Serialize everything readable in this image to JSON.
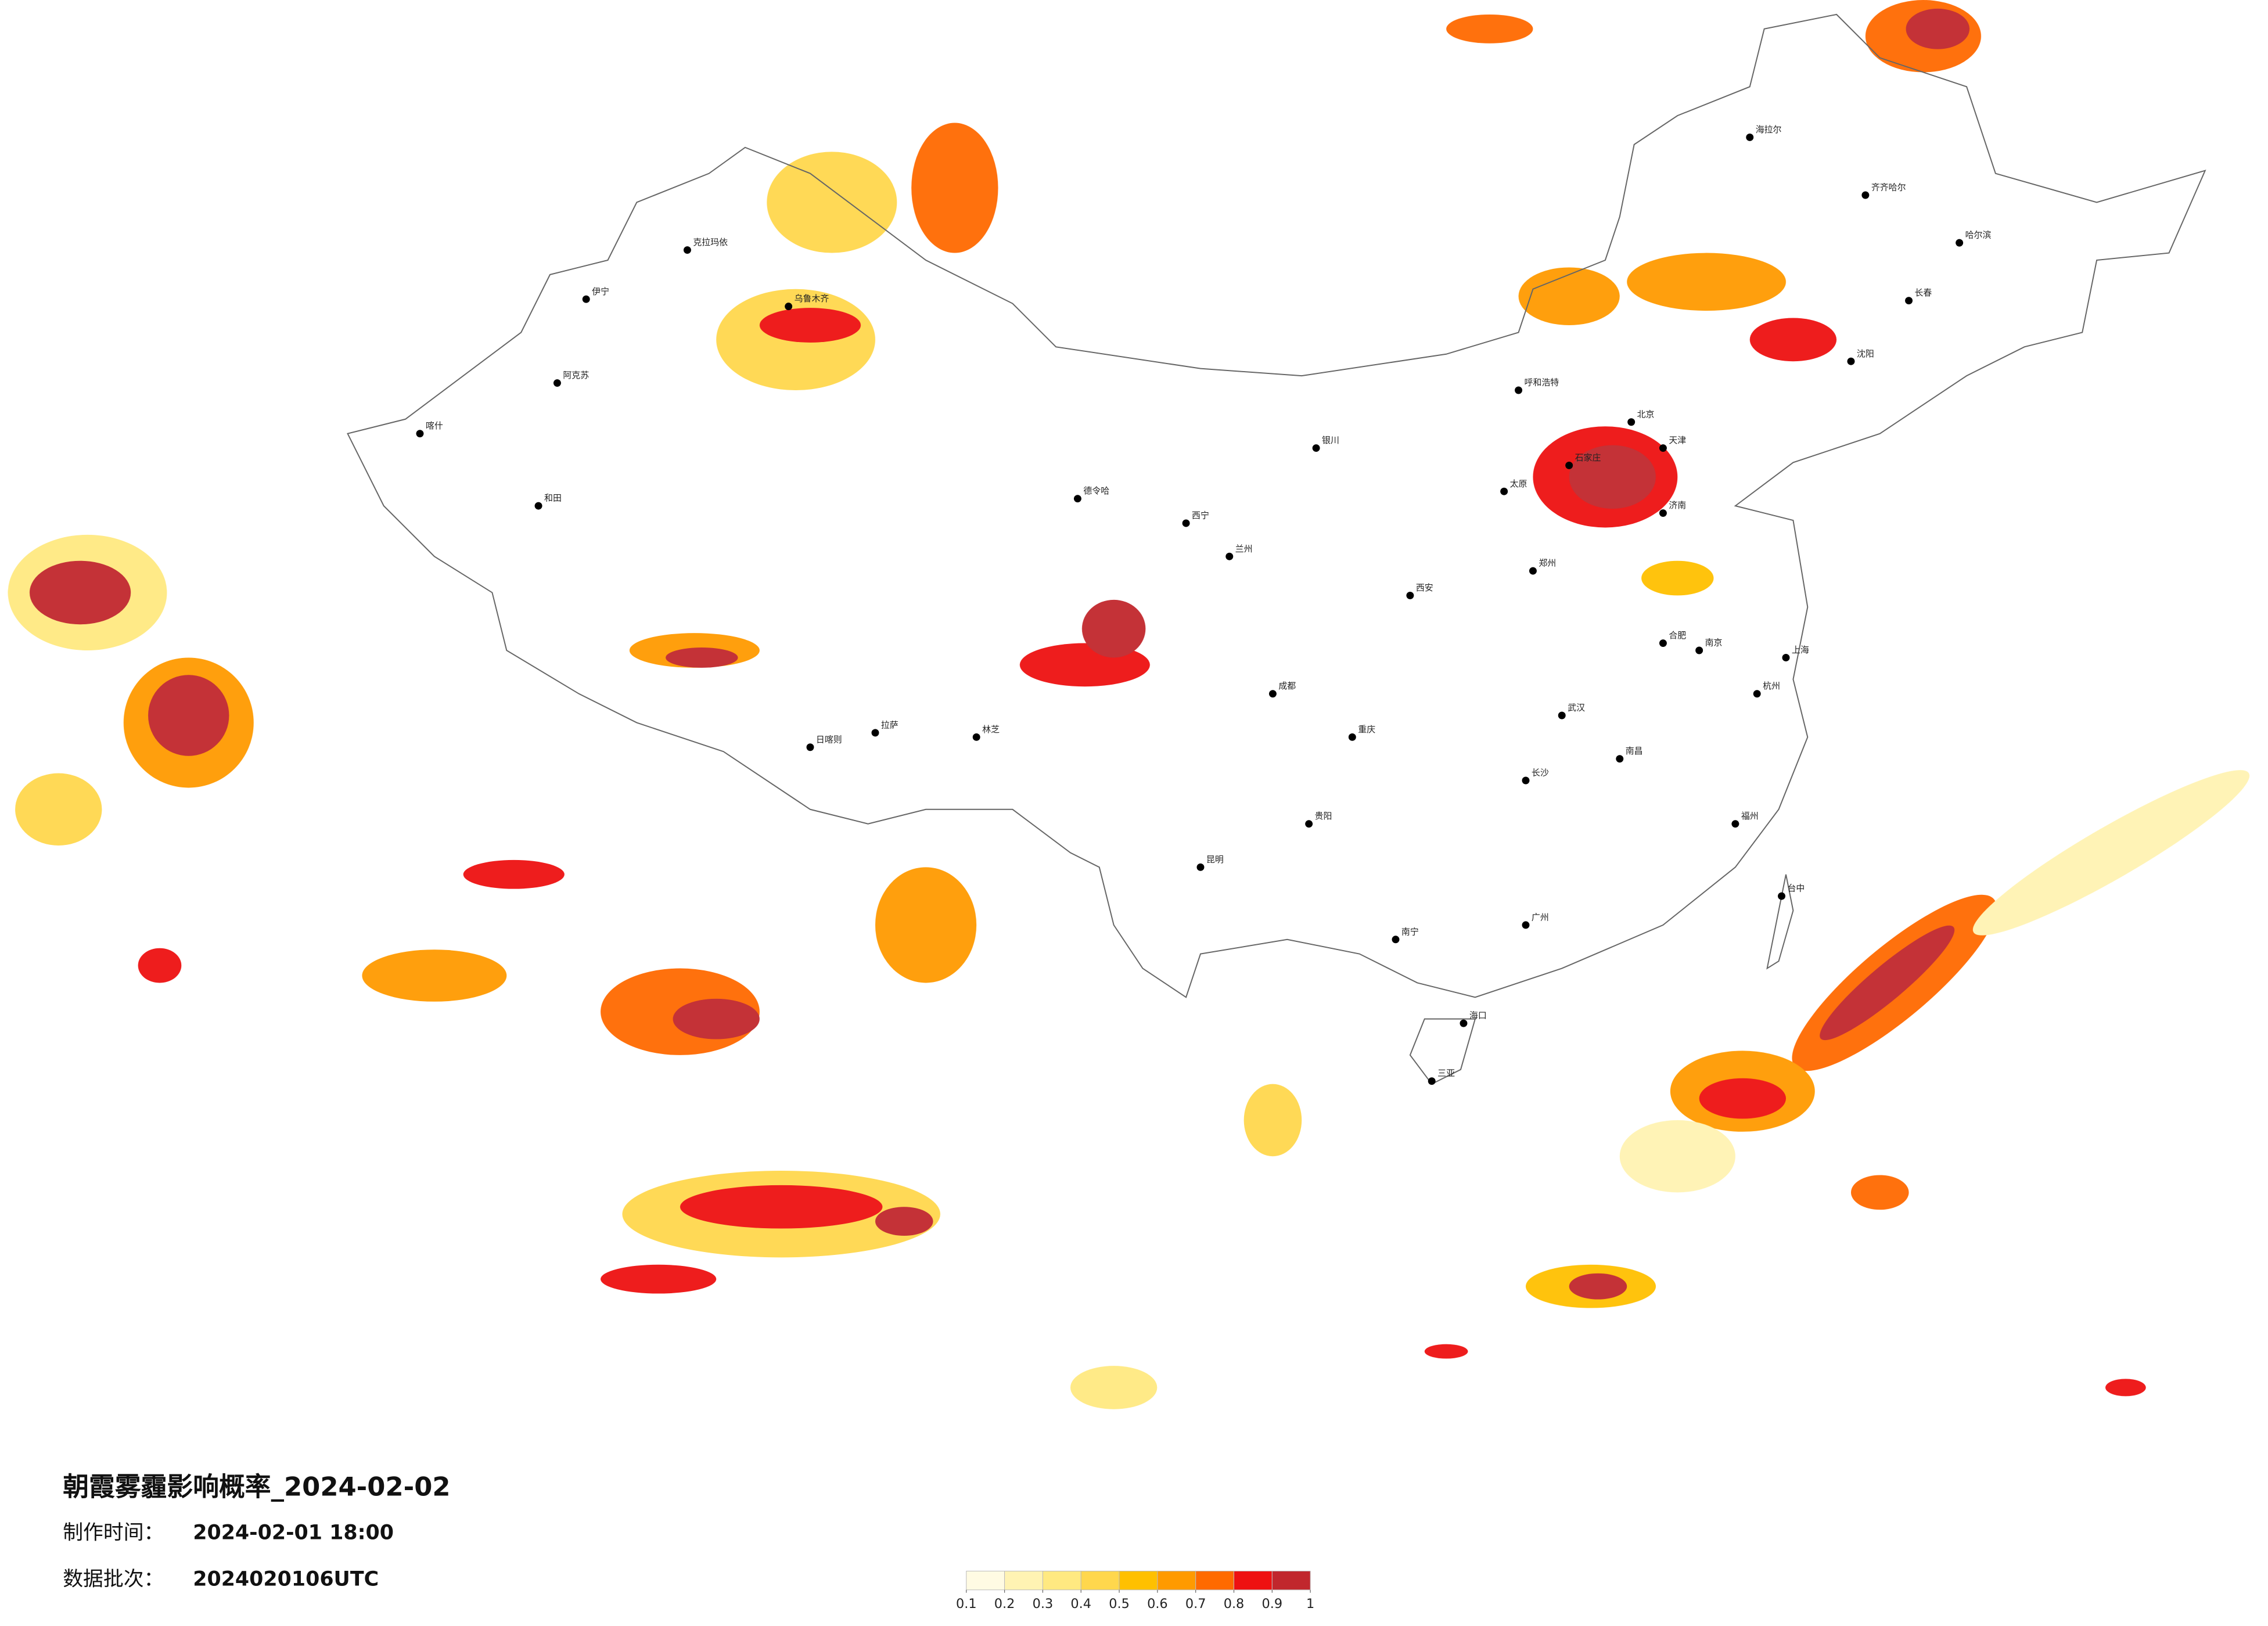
{
  "map": {
    "title": "朝霞雾霾影响概率_2024-02-02",
    "make_time_label": "制作时间：",
    "make_time": "2024-02-01 18:00",
    "batch_label": "数据批次：",
    "batch": "2024020106UTC",
    "colorbar": {
      "ticks": [
        {
          "value": 0.1,
          "label": "0.1"
        },
        {
          "value": 0.2,
          "label": "0.2"
        },
        {
          "value": 0.3,
          "label": "0.3"
        },
        {
          "value": 0.4,
          "label": "0.4"
        },
        {
          "value": 0.5,
          "label": "0.5"
        },
        {
          "value": 0.6,
          "label": "0.6"
        },
        {
          "value": 0.7,
          "label": "0.7"
        },
        {
          "value": 0.8,
          "label": "0.8"
        },
        {
          "value": 0.9,
          "label": "0.9"
        },
        {
          "value": 1,
          "label": "1"
        }
      ],
      "colors": [
        "#fffbe3",
        "#fff3b3",
        "#ffe981",
        "#ffd74d",
        "#ffc000",
        "#ff9a00",
        "#ff6a00",
        "#ee1111",
        "#c1272d"
      ]
    },
    "cities": [
      "哈尔滨",
      "长春",
      "沈阳",
      "呼和浩特",
      "北京",
      "天津",
      "石家庄",
      "太原",
      "济南",
      "郑州",
      "西安",
      "银川",
      "兰州",
      "西宁",
      "德令哈",
      "乌鲁木齐",
      "克拉玛依",
      "伊宁",
      "阿克苏",
      "和田",
      "喀什",
      "拉萨",
      "日喀则",
      "林芝",
      "成都",
      "重庆",
      "贵阳",
      "昆明",
      "南宁",
      "广州",
      "海口",
      "三亚",
      "福州",
      "台中",
      "上海",
      "南京",
      "武汉",
      "长沙",
      "南昌",
      "合肥",
      "杭州",
      "齐齐哈尔",
      "海拉尔"
    ]
  }
}
